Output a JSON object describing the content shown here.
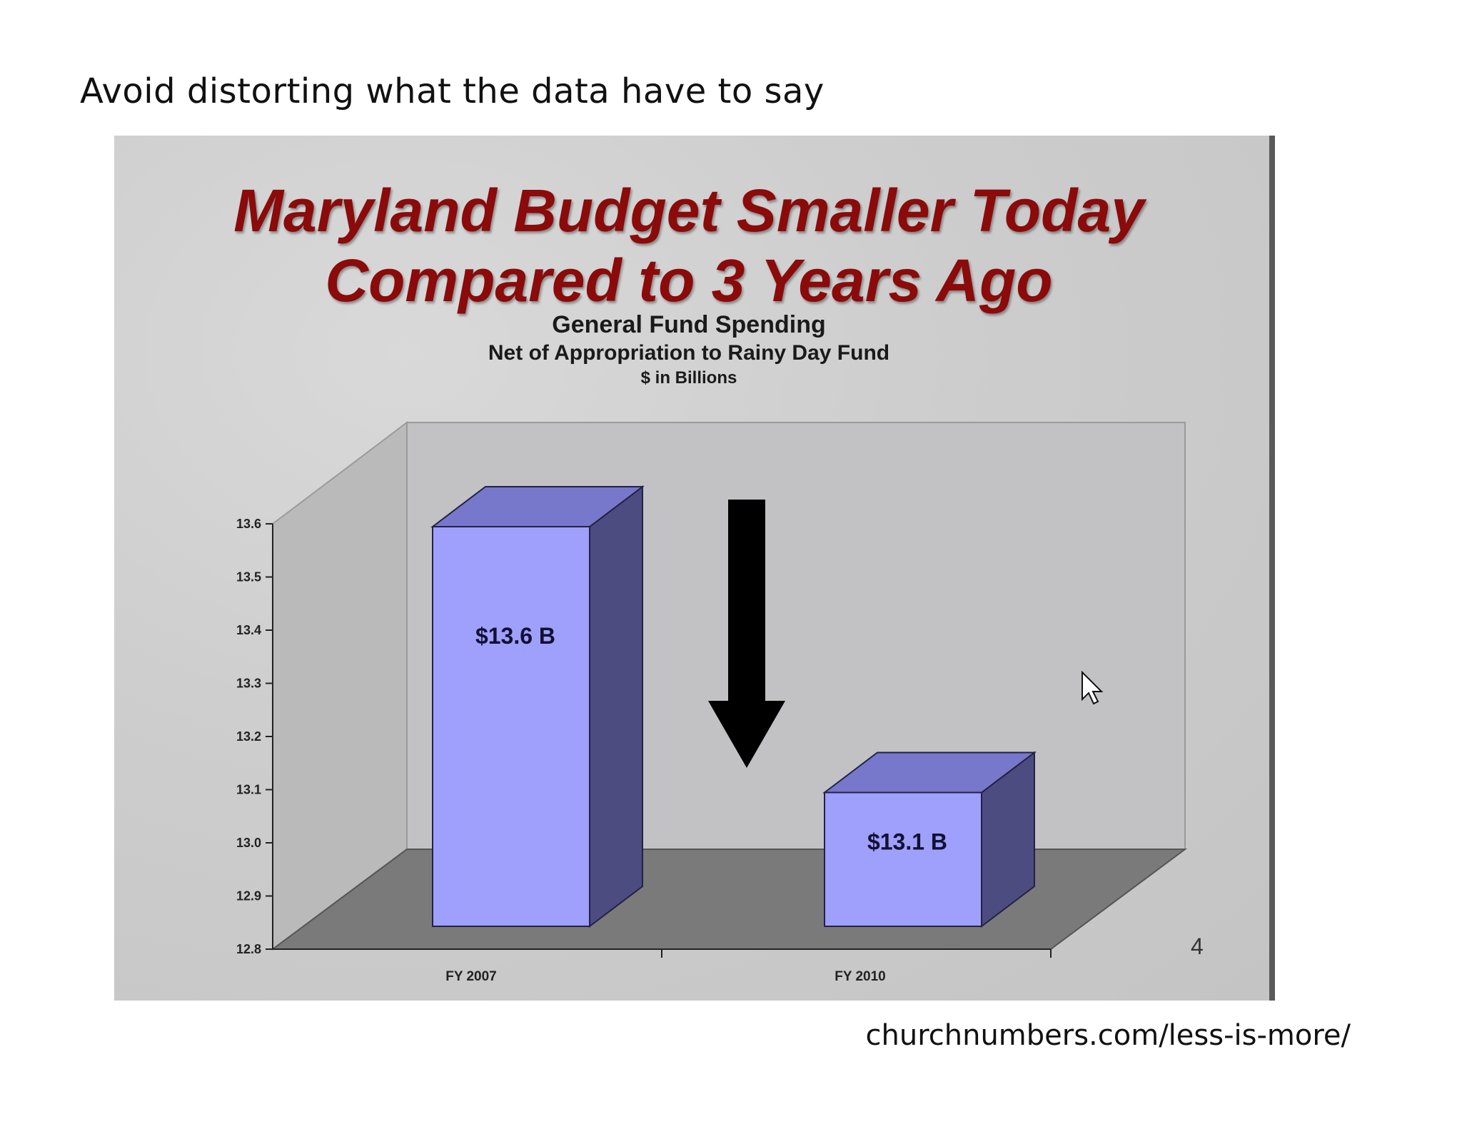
{
  "heading": "Avoid distorting what the data have to say",
  "source": "churchnumbers.com/less-is-more/",
  "slide": {
    "title_line1": "Maryland Budget Smaller Today",
    "title_line2": "Compared to 3 Years Ago",
    "subtitle1": "General Fund Spending",
    "subtitle2": "Net of Appropriation to Rainy Day Fund",
    "subtitle3": "$ in Billions",
    "page_number": "4"
  },
  "chart_data": {
    "type": "bar",
    "title": "Maryland Budget Smaller Today Compared to 3 Years Ago",
    "subtitle": "General Fund Spending",
    "categories": [
      "FY 2007",
      "FY 2010"
    ],
    "values": [
      13.6,
      13.1
    ],
    "data_labels": [
      "$13.6 B",
      "$13.1 B"
    ],
    "yticks": [
      "12.8",
      "12.9",
      "13.0",
      "13.1",
      "13.2",
      "13.3",
      "13.4",
      "13.5",
      "13.6"
    ],
    "ylim": [
      12.8,
      13.6
    ],
    "three_d": true,
    "annotation": "downward arrow",
    "colors": {
      "bar_front": "#9f9ffc",
      "bar_top": "#7777cc",
      "bar_side": "#4c4c80",
      "floor": "#7a7a7a",
      "wall": "#c4c4c4",
      "arrow": "#000000"
    }
  }
}
